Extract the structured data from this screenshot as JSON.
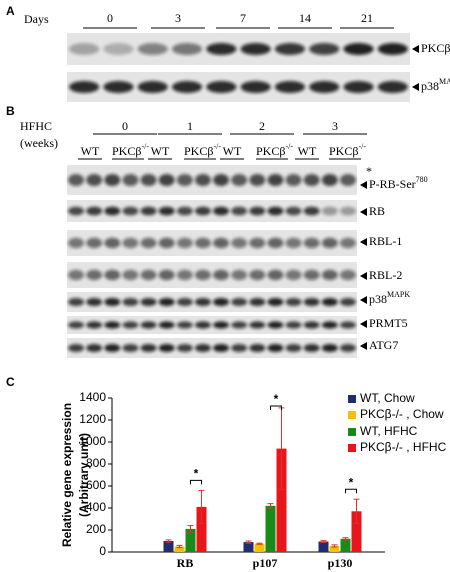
{
  "panel_a": {
    "label": "A",
    "days_label": "Days",
    "days": [
      "0",
      "3",
      "7",
      "14",
      "21"
    ],
    "blots": [
      {
        "label": "PKCβ"
      },
      {
        "label": "p38",
        "sup": "MAPK"
      }
    ]
  },
  "panel_b": {
    "label": "B",
    "hfhc": "HFHC",
    "weeks": "(weeks)",
    "week_labels": [
      "0",
      "1",
      "2",
      "3"
    ],
    "genotypes": [
      {
        "label": "WT"
      },
      {
        "label": "PKCβ",
        "sup": "-/-"
      }
    ],
    "star": "*",
    "blots": [
      {
        "label": "P-RB-Ser",
        "sup": "780"
      },
      {
        "label": "RB"
      },
      {
        "label": "RBL-1"
      },
      {
        "label": "RBL-2"
      },
      {
        "label": "p38",
        "sup": "MAPK"
      },
      {
        "label": "PRMT5"
      },
      {
        "label": "ATG7"
      }
    ]
  },
  "panel_c": {
    "label": "C"
  },
  "chart_data": {
    "type": "bar",
    "ylabel": [
      "Relative gene expression",
      "(Arbitrary unit)"
    ],
    "categories": [
      "RB",
      "p107",
      "p130"
    ],
    "series": [
      {
        "name": "WT, Chow",
        "color": "#1f2d6e",
        "values": [
          100,
          90,
          95
        ],
        "errors": [
          10,
          10,
          8
        ]
      },
      {
        "name": "PKCβ-/- , Chow",
        "color": "#f2c200",
        "values": [
          50,
          75,
          55
        ],
        "errors": [
          10,
          5,
          10
        ]
      },
      {
        "name": "WT, HFHC",
        "color": "#1a8a1a",
        "values": [
          210,
          420,
          120
        ],
        "errors": [
          30,
          20,
          10
        ]
      },
      {
        "name": "PKCβ-/- , HFHC",
        "color": "#e8151b",
        "values": [
          410,
          940,
          370
        ],
        "errors": [
          150,
          370,
          110
        ]
      }
    ],
    "significance": [
      "*",
      "*",
      "*"
    ],
    "ylim": [
      0,
      1400
    ],
    "yticks": [
      0,
      200,
      400,
      600,
      800,
      1000,
      1200,
      1400
    ]
  }
}
